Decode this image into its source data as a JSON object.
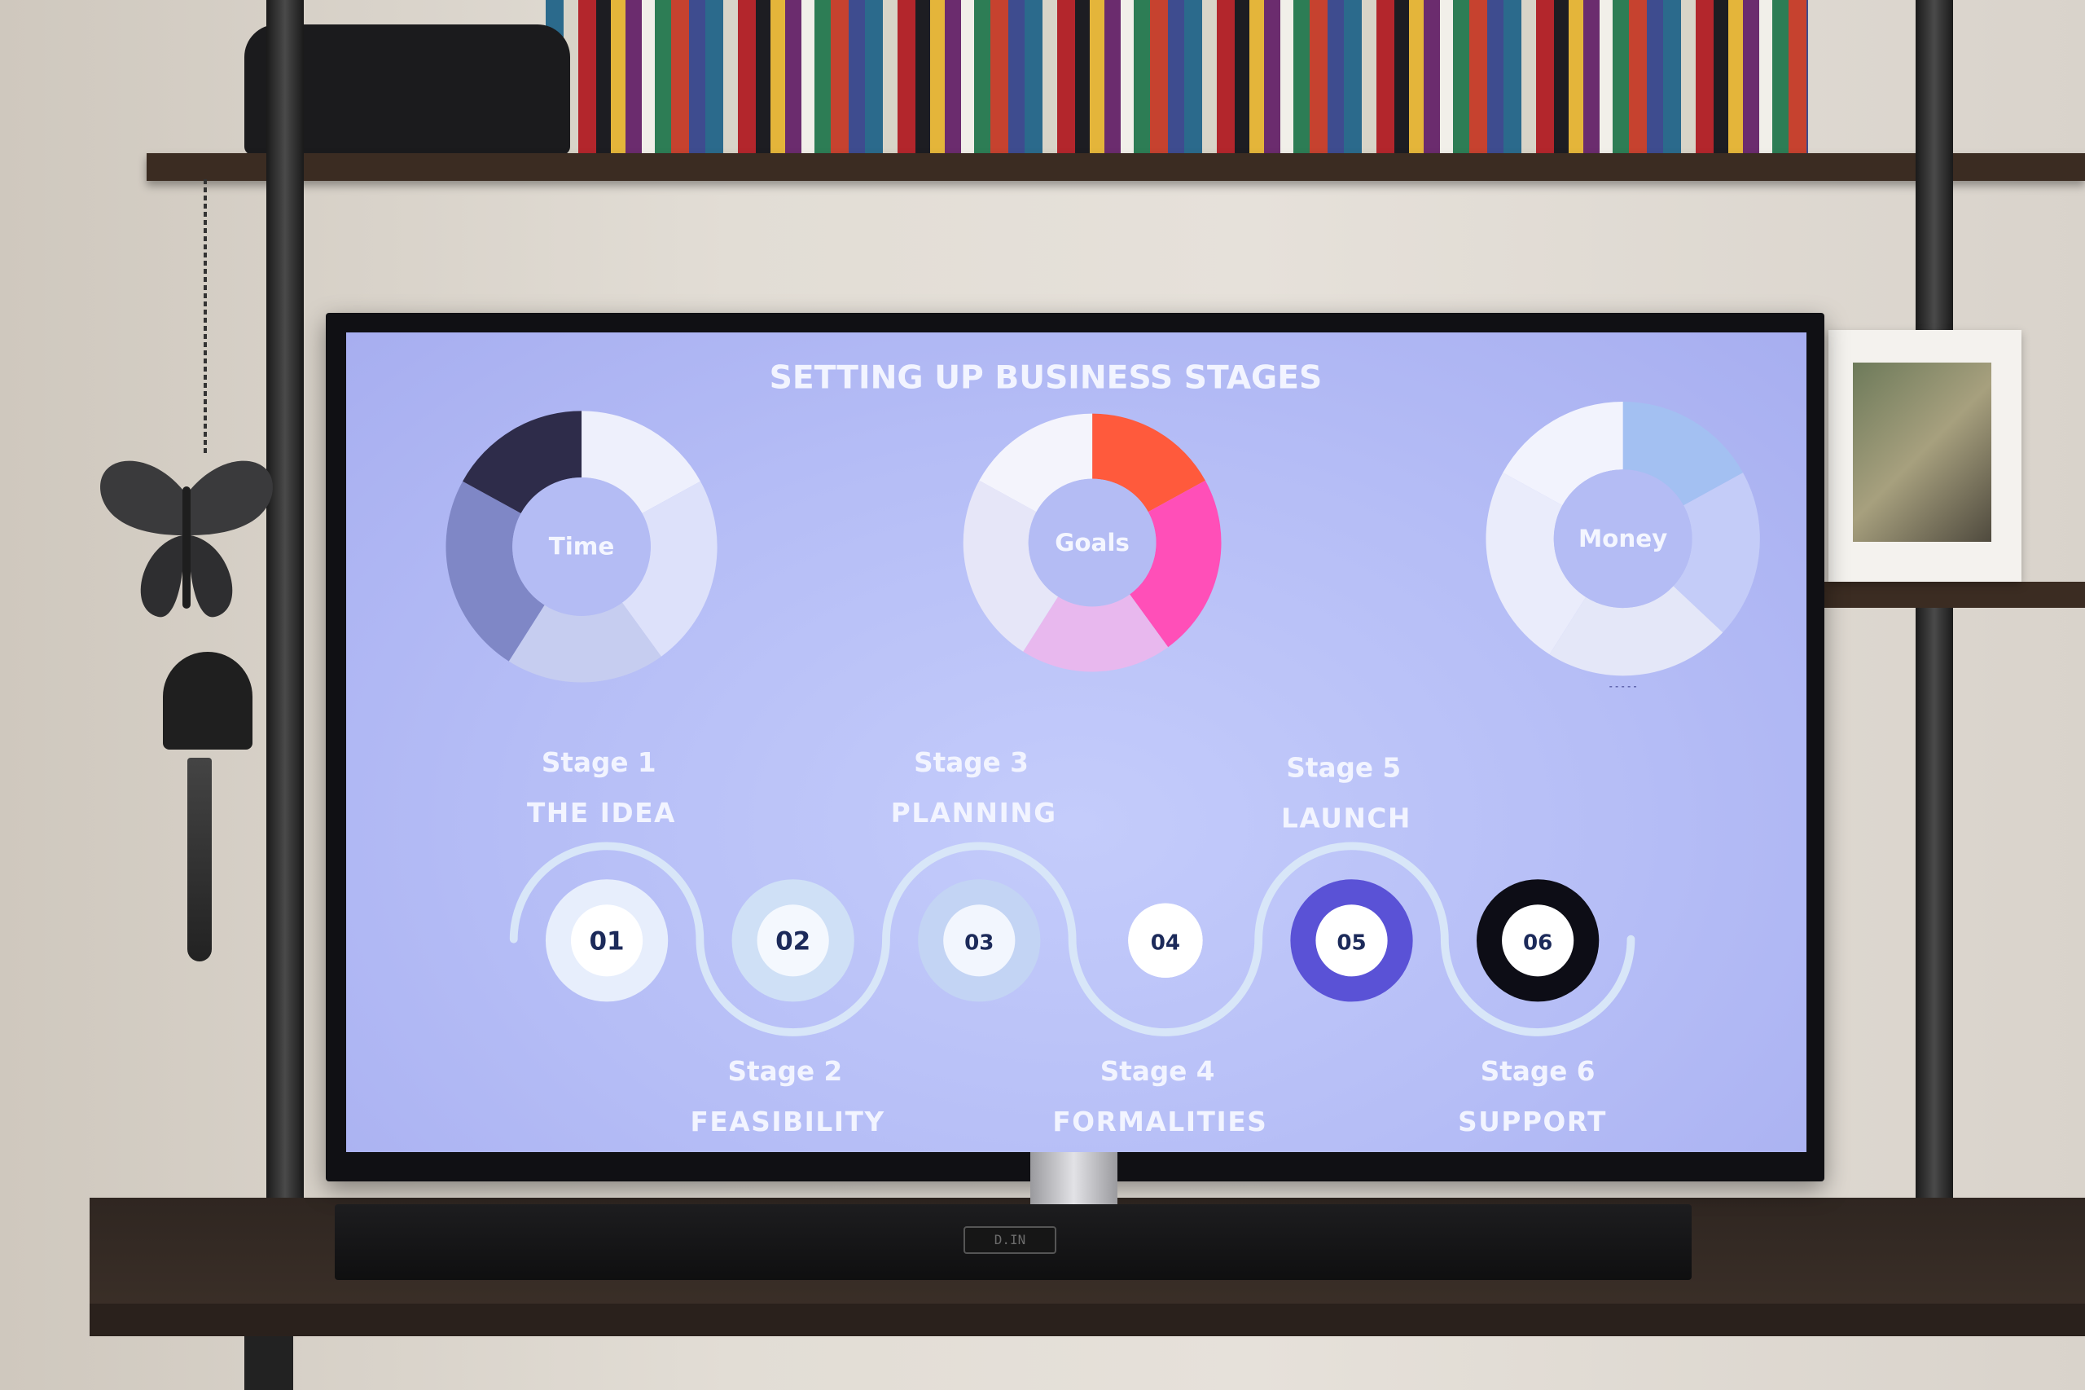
{
  "screen": {
    "title": "SETTING UP BUSINESS STAGES",
    "donuts": [
      {
        "label": "Time",
        "segments": [
          {
            "fraction": 0.17,
            "color": "#eef0fc"
          },
          {
            "fraction": 0.23,
            "color": "#dde1fa"
          },
          {
            "fraction": 0.19,
            "color": "#c6cdf0"
          },
          {
            "fraction": 0.24,
            "color": "#7f87c6"
          },
          {
            "fraction": 0.17,
            "color": "#2e2c4a"
          }
        ]
      },
      {
        "label": "Goals",
        "segments": [
          {
            "fraction": 0.17,
            "color": "#ff5a3c"
          },
          {
            "fraction": 0.23,
            "color": "#ff4fb8"
          },
          {
            "fraction": 0.19,
            "color": "#e8b8ee"
          },
          {
            "fraction": 0.24,
            "color": "#e6e6f8"
          },
          {
            "fraction": 0.17,
            "color": "#f4f4fc"
          }
        ]
      },
      {
        "label": "Money",
        "segments": [
          {
            "fraction": 0.17,
            "color": "#a3c0f2"
          },
          {
            "fraction": 0.2,
            "color": "#c4ccf8"
          },
          {
            "fraction": 0.22,
            "color": "#e4e7f8"
          },
          {
            "fraction": 0.24,
            "color": "#eaecfb"
          },
          {
            "fraction": 0.17,
            "color": "#f2f3fd"
          }
        ]
      }
    ],
    "money_footnote": "- - - - -",
    "stages": [
      {
        "stage": "Stage 1",
        "name": "THE IDEA",
        "number": "01",
        "ring_color": "#e7eefc",
        "inner_color": "#ffffff"
      },
      {
        "stage": "Stage 2",
        "name": "FEASIBILITY",
        "number": "02",
        "ring_color": "#cfe0f6",
        "inner_color": "#f4f8fe"
      },
      {
        "stage": "Stage 3",
        "name": "PLANNING",
        "number": "03",
        "ring_color": "#c3d4f4",
        "inner_color": "#f2f6fe"
      },
      {
        "stage": "Stage 4",
        "name": "FORMALITIES",
        "number": "04",
        "ring_color": "#ffffff",
        "inner_color": "#ffffff"
      },
      {
        "stage": "Stage 5",
        "name": "LAUNCH",
        "number": "05",
        "ring_color": "#5a52d6",
        "inner_color": "#ffffff"
      },
      {
        "stage": "Stage 6",
        "name": "SUPPORT",
        "number": "06",
        "ring_color": "#0d0d16",
        "inner_color": "#ffffff"
      }
    ],
    "wave_color": "#d8e6f8",
    "number_color": "#1c2a5a"
  },
  "soundbar": {
    "display": "D.IN"
  }
}
